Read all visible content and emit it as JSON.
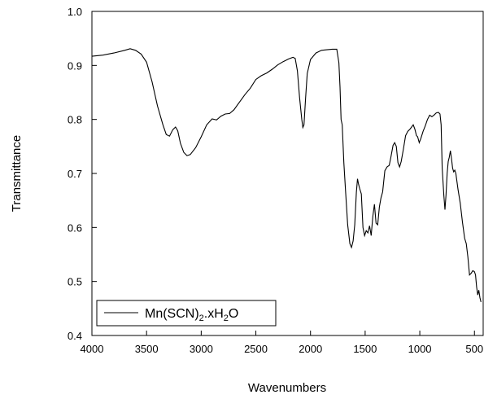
{
  "chart_data": {
    "type": "line",
    "xlabel": "Wavenumbers",
    "ylabel": "Transmittance",
    "xlim": [
      4000,
      420
    ],
    "x_reversed": true,
    "ylim": [
      0.4,
      1.0
    ],
    "x_ticks": [
      4000,
      3500,
      3000,
      2500,
      2000,
      1500,
      1000,
      500
    ],
    "y_ticks": [
      0.4,
      0.5,
      0.6,
      0.7,
      0.8,
      0.9,
      1.0
    ],
    "x_tick_labels": [
      "4000",
      "3500",
      "3000",
      "2500",
      "2000",
      "1500",
      "1000",
      "500"
    ],
    "y_tick_labels": [
      "0.4",
      "0.5",
      "0.6",
      "0.7",
      "0.8",
      "0.9",
      "1.0"
    ],
    "grid": false,
    "legend_position": "bottom-left",
    "series": [
      {
        "name": "Mn(SCN)2.xH2O",
        "color": "#000000",
        "points": [
          [
            4000,
            0.917
          ],
          [
            3900,
            0.919
          ],
          [
            3800,
            0.923
          ],
          [
            3700,
            0.928
          ],
          [
            3650,
            0.931
          ],
          [
            3600,
            0.928
          ],
          [
            3550,
            0.921
          ],
          [
            3500,
            0.906
          ],
          [
            3450,
            0.87
          ],
          [
            3400,
            0.825
          ],
          [
            3350,
            0.79
          ],
          [
            3320,
            0.772
          ],
          [
            3290,
            0.769
          ],
          [
            3260,
            0.781
          ],
          [
            3235,
            0.786
          ],
          [
            3215,
            0.779
          ],
          [
            3190,
            0.756
          ],
          [
            3160,
            0.739
          ],
          [
            3130,
            0.733
          ],
          [
            3100,
            0.735
          ],
          [
            3050,
            0.748
          ],
          [
            3000,
            0.768
          ],
          [
            2950,
            0.79
          ],
          [
            2900,
            0.801
          ],
          [
            2860,
            0.799
          ],
          [
            2820,
            0.806
          ],
          [
            2780,
            0.81
          ],
          [
            2740,
            0.811
          ],
          [
            2700,
            0.818
          ],
          [
            2650,
            0.832
          ],
          [
            2600,
            0.846
          ],
          [
            2550,
            0.858
          ],
          [
            2500,
            0.874
          ],
          [
            2450,
            0.881
          ],
          [
            2400,
            0.886
          ],
          [
            2350,
            0.893
          ],
          [
            2300,
            0.901
          ],
          [
            2250,
            0.907
          ],
          [
            2200,
            0.912
          ],
          [
            2160,
            0.915
          ],
          [
            2140,
            0.913
          ],
          [
            2120,
            0.89
          ],
          [
            2100,
            0.84
          ],
          [
            2080,
            0.8
          ],
          [
            2070,
            0.785
          ],
          [
            2060,
            0.79
          ],
          [
            2045,
            0.84
          ],
          [
            2030,
            0.885
          ],
          [
            2000,
            0.911
          ],
          [
            1950,
            0.923
          ],
          [
            1900,
            0.928
          ],
          [
            1850,
            0.929
          ],
          [
            1800,
            0.93
          ],
          [
            1760,
            0.93
          ],
          [
            1740,
            0.905
          ],
          [
            1730,
            0.86
          ],
          [
            1720,
            0.8
          ],
          [
            1710,
            0.79
          ],
          [
            1695,
            0.72
          ],
          [
            1680,
            0.67
          ],
          [
            1660,
            0.605
          ],
          [
            1640,
            0.57
          ],
          [
            1625,
            0.563
          ],
          [
            1610,
            0.575
          ],
          [
            1595,
            0.605
          ],
          [
            1580,
            0.665
          ],
          [
            1570,
            0.69
          ],
          [
            1560,
            0.68
          ],
          [
            1550,
            0.672
          ],
          [
            1535,
            0.662
          ],
          [
            1520,
            0.6
          ],
          [
            1505,
            0.585
          ],
          [
            1490,
            0.594
          ],
          [
            1475,
            0.59
          ],
          [
            1460,
            0.603
          ],
          [
            1445,
            0.585
          ],
          [
            1430,
            0.62
          ],
          [
            1415,
            0.643
          ],
          [
            1400,
            0.608
          ],
          [
            1385,
            0.605
          ],
          [
            1370,
            0.638
          ],
          [
            1355,
            0.655
          ],
          [
            1340,
            0.666
          ],
          [
            1320,
            0.705
          ],
          [
            1300,
            0.712
          ],
          [
            1280,
            0.715
          ],
          [
            1265,
            0.73
          ],
          [
            1245,
            0.752
          ],
          [
            1230,
            0.757
          ],
          [
            1215,
            0.75
          ],
          [
            1200,
            0.72
          ],
          [
            1185,
            0.712
          ],
          [
            1170,
            0.722
          ],
          [
            1150,
            0.745
          ],
          [
            1130,
            0.77
          ],
          [
            1110,
            0.778
          ],
          [
            1090,
            0.782
          ],
          [
            1075,
            0.786
          ],
          [
            1060,
            0.79
          ],
          [
            1045,
            0.782
          ],
          [
            1030,
            0.77
          ],
          [
            1020,
            0.768
          ],
          [
            1005,
            0.757
          ],
          [
            990,
            0.765
          ],
          [
            970,
            0.778
          ],
          [
            950,
            0.788
          ],
          [
            930,
            0.8
          ],
          [
            910,
            0.808
          ],
          [
            890,
            0.805
          ],
          [
            870,
            0.808
          ],
          [
            850,
            0.812
          ],
          [
            830,
            0.813
          ],
          [
            815,
            0.81
          ],
          [
            805,
            0.79
          ],
          [
            795,
            0.71
          ],
          [
            780,
            0.66
          ],
          [
            770,
            0.633
          ],
          [
            760,
            0.66
          ],
          [
            750,
            0.7
          ],
          [
            740,
            0.722
          ],
          [
            730,
            0.73
          ],
          [
            720,
            0.742
          ],
          [
            710,
            0.728
          ],
          [
            700,
            0.71
          ],
          [
            690,
            0.703
          ],
          [
            680,
            0.706
          ],
          [
            670,
            0.7
          ],
          [
            650,
            0.67
          ],
          [
            630,
            0.645
          ],
          [
            610,
            0.61
          ],
          [
            590,
            0.58
          ],
          [
            575,
            0.57
          ],
          [
            560,
            0.545
          ],
          [
            545,
            0.512
          ],
          [
            530,
            0.515
          ],
          [
            515,
            0.52
          ],
          [
            500,
            0.518
          ],
          [
            490,
            0.512
          ],
          [
            480,
            0.49
          ],
          [
            470,
            0.475
          ],
          [
            460,
            0.484
          ],
          [
            450,
            0.47
          ],
          [
            440,
            0.462
          ]
        ]
      }
    ],
    "legend": {
      "label_main": "Mn(SCN)",
      "label_sub1": "2",
      "label_mid": ".xH",
      "label_sub2": "2",
      "label_end": "O"
    }
  }
}
